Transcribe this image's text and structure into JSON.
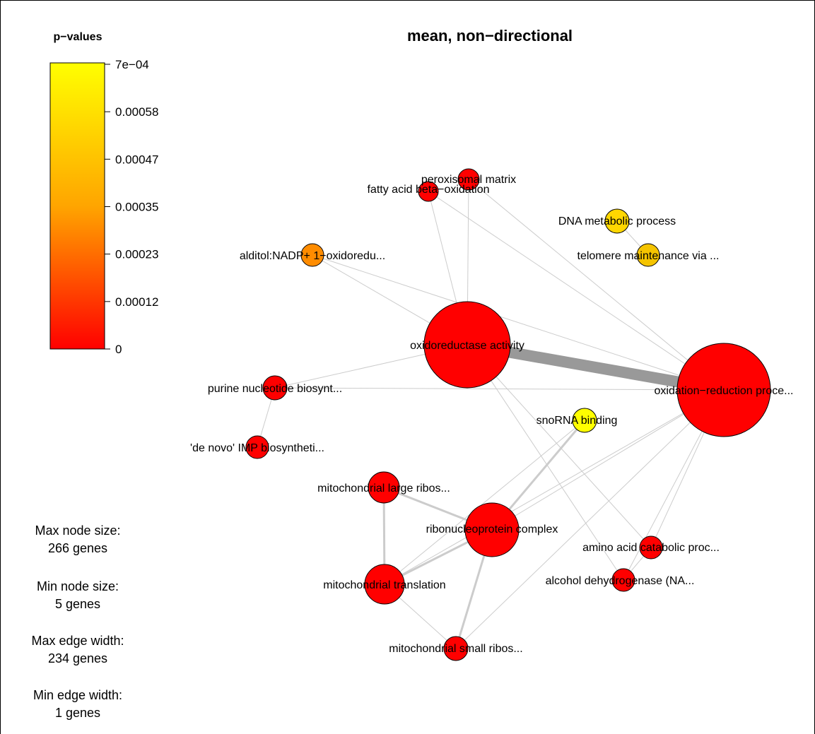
{
  "title": "mean, non−directional",
  "legend": {
    "title": "p−values",
    "ticks": [
      "7e−04",
      "0.00058",
      "0.00047",
      "0.00035",
      "0.00023",
      "0.00012",
      "0"
    ],
    "colors": {
      "low": "#ff0000",
      "mid": "#ffa500",
      "high": "#ffff00"
    }
  },
  "stats": {
    "max_node_label": "Max node size:",
    "max_node_value": "266 genes",
    "min_node_label": "Min node size:",
    "min_node_value": "5 genes",
    "max_edge_label": "Max edge width:",
    "max_edge_value": "234 genes",
    "min_edge_label": "Min edge width:",
    "min_edge_value": "1 genes"
  },
  "nodes": [
    {
      "id": "peroxisomal",
      "label": "peroxisomal matrix",
      "color": "#ff0000"
    },
    {
      "id": "fatty",
      "label": "fatty acid beta−oxidation",
      "color": "#ff0000"
    },
    {
      "id": "dna",
      "label": "DNA metabolic process",
      "color": "#ffd700"
    },
    {
      "id": "telomere",
      "label": "telomere maintenance via ...",
      "color": "#f5c400"
    },
    {
      "id": "alditol",
      "label": "alditol:NADP+ 1−oxidoredu...",
      "color": "#ff8c00"
    },
    {
      "id": "oxidoreductase",
      "label": "oxidoreductase activity",
      "color": "#ff0000"
    },
    {
      "id": "oxred",
      "label": "oxidation−reduction proce...",
      "color": "#ff0000"
    },
    {
      "id": "purine",
      "label": "purine nucleotide biosynt...",
      "color": "#ff0000"
    },
    {
      "id": "snorna",
      "label": "snoRNA binding",
      "color": "#ffff00"
    },
    {
      "id": "denovo",
      "label": "'de novo' IMP biosyntheti...",
      "color": "#ff0000"
    },
    {
      "id": "mlarge",
      "label": "mitochondrial large ribos...",
      "color": "#ff0000"
    },
    {
      "id": "rnp",
      "label": "ribonucleoprotein complex",
      "color": "#ff0000"
    },
    {
      "id": "aminoacid",
      "label": "amino acid catabolic proc...",
      "color": "#ff0000"
    },
    {
      "id": "mtrans",
      "label": "mitochondrial translation",
      "color": "#ff0000"
    },
    {
      "id": "alcohol",
      "label": "alcohol dehydrogenase (NA...",
      "color": "#ff0000"
    },
    {
      "id": "msmall",
      "label": "mitochondrial small ribos...",
      "color": "#ff0000"
    }
  ],
  "edges": [
    {
      "from": "oxidoreductase",
      "to": "oxred",
      "weight": "heavy"
    },
    {
      "from": "peroxisomal",
      "to": "oxidoreductase",
      "weight": "thin"
    },
    {
      "from": "peroxisomal",
      "to": "oxred",
      "weight": "thin"
    },
    {
      "from": "fatty",
      "to": "oxidoreductase",
      "weight": "thin"
    },
    {
      "from": "fatty",
      "to": "oxred",
      "weight": "thin"
    },
    {
      "from": "dna",
      "to": "telomere",
      "weight": "thin"
    },
    {
      "from": "alditol",
      "to": "oxidoreductase",
      "weight": "thin"
    },
    {
      "from": "alditol",
      "to": "oxred",
      "weight": "thin"
    },
    {
      "from": "purine",
      "to": "oxidoreductase",
      "weight": "thin"
    },
    {
      "from": "purine",
      "to": "oxred",
      "weight": "thin"
    },
    {
      "from": "purine",
      "to": "denovo",
      "weight": "thin"
    },
    {
      "from": "oxidoreductase",
      "to": "alcohol",
      "weight": "thin"
    },
    {
      "from": "oxidoreductase",
      "to": "aminoacid",
      "weight": "thin"
    },
    {
      "from": "oxred",
      "to": "rnp",
      "weight": "thin"
    },
    {
      "from": "oxred",
      "to": "mtrans",
      "weight": "thin"
    },
    {
      "from": "oxred",
      "to": "msmall",
      "weight": "thin"
    },
    {
      "from": "oxred",
      "to": "aminoacid",
      "weight": "thin"
    },
    {
      "from": "oxred",
      "to": "alcohol",
      "weight": "thin"
    },
    {
      "from": "snorna",
      "to": "rnp",
      "weight": "medium"
    },
    {
      "from": "snorna",
      "to": "mtrans",
      "weight": "thin"
    },
    {
      "from": "mlarge",
      "to": "rnp",
      "weight": "medium"
    },
    {
      "from": "mlarge",
      "to": "mtrans",
      "weight": "medium"
    },
    {
      "from": "rnp",
      "to": "mtrans",
      "weight": "medium"
    },
    {
      "from": "rnp",
      "to": "msmall",
      "weight": "medium"
    },
    {
      "from": "mtrans",
      "to": "msmall",
      "weight": "thin"
    },
    {
      "from": "aminoacid",
      "to": "alcohol",
      "weight": "thin"
    }
  ]
}
